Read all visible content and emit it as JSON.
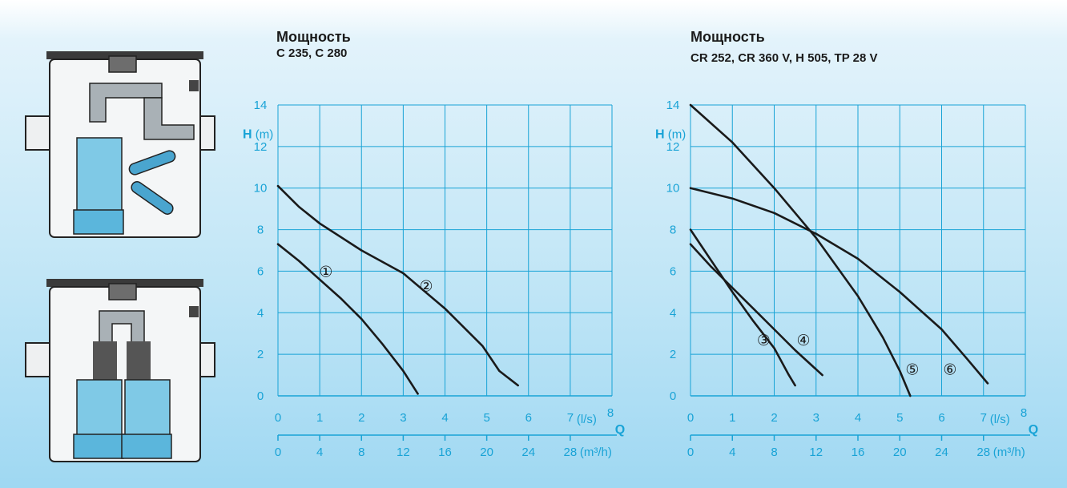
{
  "colors": {
    "grid": "#19a3d6",
    "curve": "#1a1a1a",
    "tick": "#19a3d6"
  },
  "illustrations": [
    {
      "name": "single-pump-tank"
    },
    {
      "name": "double-pump-tank"
    }
  ],
  "chart_data": [
    {
      "type": "line",
      "title": "Мощность",
      "subtitle": "C 235, C 280",
      "ylabel": "H",
      "yunit": "(m)",
      "xlabel": "Q",
      "xunit_ls": "(l/s)",
      "xunit_m3h": "(m³/h)",
      "ylim": [
        0,
        14
      ],
      "xlim": [
        0,
        8
      ],
      "grid": true,
      "y_ticks": [
        "0",
        "2",
        "4",
        "6",
        "8",
        "10",
        "12",
        "14"
      ],
      "x_ticks_ls": [
        "0",
        "1",
        "2",
        "3",
        "4",
        "5",
        "6",
        "7",
        "8"
      ],
      "x_ticks_m3h": [
        "0",
        "4",
        "8",
        "12",
        "16",
        "20",
        "24",
        "28"
      ],
      "series": [
        {
          "label": "①",
          "label_at": [
            1.15,
            6.0
          ],
          "points": [
            [
              0,
              7.3
            ],
            [
              0.5,
              6.5
            ],
            [
              1,
              5.6
            ],
            [
              1.5,
              4.7
            ],
            [
              2,
              3.7
            ],
            [
              2.5,
              2.5
            ],
            [
              3,
              1.2
            ],
            [
              3.35,
              0.1
            ]
          ]
        },
        {
          "label": "②",
          "label_at": [
            3.55,
            5.3
          ],
          "points": [
            [
              0,
              10.1
            ],
            [
              0.5,
              9.1
            ],
            [
              1,
              8.3
            ],
            [
              2,
              7.0
            ],
            [
              3,
              5.9
            ],
            [
              4,
              4.2
            ],
            [
              4.9,
              2.4
            ],
            [
              5.3,
              1.2
            ],
            [
              5.75,
              0.5
            ]
          ]
        }
      ]
    },
    {
      "type": "line",
      "title": "Мощность",
      "subtitle": "CR 252, CR 360 V, H 505, TP 28 V",
      "ylabel": "H",
      "yunit": "(m)",
      "xlabel": "Q",
      "xunit_ls": "(l/s)",
      "xunit_m3h": "(m³/h)",
      "ylim": [
        0,
        14
      ],
      "xlim": [
        0,
        8
      ],
      "grid": true,
      "y_ticks": [
        "0",
        "2",
        "4",
        "6",
        "8",
        "10",
        "12",
        "14"
      ],
      "x_ticks_ls": [
        "0",
        "1",
        "2",
        "3",
        "4",
        "5",
        "6",
        "7",
        "8"
      ],
      "x_ticks_m3h": [
        "0",
        "4",
        "8",
        "12",
        "16",
        "20",
        "24",
        "28"
      ],
      "series": [
        {
          "label": "③",
          "label_at": [
            1.75,
            2.7
          ],
          "points": [
            [
              0,
              8.0
            ],
            [
              0.5,
              6.5
            ],
            [
              1,
              5.0
            ],
            [
              1.5,
              3.6
            ],
            [
              2,
              2.3
            ],
            [
              2.35,
              1.0
            ],
            [
              2.5,
              0.5
            ]
          ]
        },
        {
          "label": "④",
          "label_at": [
            2.7,
            2.7
          ],
          "points": [
            [
              0,
              7.3
            ],
            [
              0.5,
              6.2
            ],
            [
              1,
              5.2
            ],
            [
              1.5,
              4.2
            ],
            [
              2,
              3.2
            ],
            [
              2.5,
              2.2
            ],
            [
              3.15,
              1.0
            ]
          ]
        },
        {
          "label": "⑤",
          "label_at": [
            5.3,
            1.3
          ],
          "points": [
            [
              0,
              14.0
            ],
            [
              1,
              12.2
            ],
            [
              2,
              10.0
            ],
            [
              3,
              7.6
            ],
            [
              4,
              4.8
            ],
            [
              4.6,
              2.8
            ],
            [
              5.0,
              1.2
            ],
            [
              5.25,
              0.0
            ]
          ]
        },
        {
          "label": "⑥",
          "label_at": [
            6.2,
            1.3
          ],
          "points": [
            [
              0,
              10.0
            ],
            [
              1,
              9.5
            ],
            [
              2,
              8.8
            ],
            [
              3,
              7.8
            ],
            [
              4,
              6.6
            ],
            [
              5,
              5.0
            ],
            [
              6,
              3.2
            ],
            [
              6.6,
              1.8
            ],
            [
              7.1,
              0.6
            ]
          ]
        }
      ]
    }
  ]
}
